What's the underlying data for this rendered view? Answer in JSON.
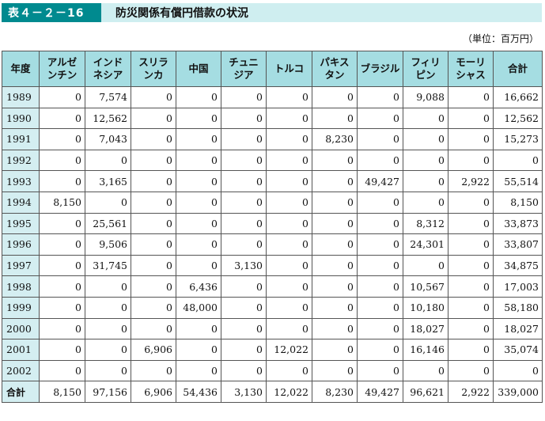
{
  "header": {
    "table_number": "表４－２－16",
    "title": "防災関係有償円借款の状況"
  },
  "unit_note": "（単位：百万円）",
  "columns": [
    [
      "年度"
    ],
    [
      "アルゼ",
      "ンチン"
    ],
    [
      "インド",
      "ネシア"
    ],
    [
      "スリラ",
      "ンカ"
    ],
    [
      "中国"
    ],
    [
      "チュニ",
      "ジア"
    ],
    [
      "トルコ"
    ],
    [
      "パキス",
      "タン"
    ],
    [
      "ブラジル"
    ],
    [
      "フィリ",
      "ピン"
    ],
    [
      "モーリ",
      "シャス"
    ],
    [
      "合計"
    ]
  ],
  "rows": [
    [
      "1989",
      "0",
      "7,574",
      "0",
      "0",
      "0",
      "0",
      "0",
      "0",
      "9,088",
      "0",
      "16,662"
    ],
    [
      "1990",
      "0",
      "12,562",
      "0",
      "0",
      "0",
      "0",
      "0",
      "0",
      "0",
      "0",
      "12,562"
    ],
    [
      "1991",
      "0",
      "7,043",
      "0",
      "0",
      "0",
      "0",
      "8,230",
      "0",
      "0",
      "0",
      "15,273"
    ],
    [
      "1992",
      "0",
      "0",
      "0",
      "0",
      "0",
      "0",
      "0",
      "0",
      "0",
      "0",
      "0"
    ],
    [
      "1993",
      "0",
      "3,165",
      "0",
      "0",
      "0",
      "0",
      "0",
      "49,427",
      "0",
      "2,922",
      "55,514"
    ],
    [
      "1994",
      "8,150",
      "0",
      "0",
      "0",
      "0",
      "0",
      "0",
      "0",
      "0",
      "0",
      "8,150"
    ],
    [
      "1995",
      "0",
      "25,561",
      "0",
      "0",
      "0",
      "0",
      "0",
      "0",
      "8,312",
      "0",
      "33,873"
    ],
    [
      "1996",
      "0",
      "9,506",
      "0",
      "0",
      "0",
      "0",
      "0",
      "0",
      "24,301",
      "0",
      "33,807"
    ],
    [
      "1997",
      "0",
      "31,745",
      "0",
      "0",
      "3,130",
      "0",
      "0",
      "0",
      "0",
      "0",
      "34,875"
    ],
    [
      "1998",
      "0",
      "0",
      "0",
      "6,436",
      "0",
      "0",
      "0",
      "0",
      "10,567",
      "0",
      "17,003"
    ],
    [
      "1999",
      "0",
      "0",
      "0",
      "48,000",
      "0",
      "0",
      "0",
      "0",
      "10,180",
      "0",
      "58,180"
    ],
    [
      "2000",
      "0",
      "0",
      "0",
      "0",
      "0",
      "0",
      "0",
      "0",
      "18,027",
      "0",
      "18,027"
    ],
    [
      "2001",
      "0",
      "0",
      "6,906",
      "0",
      "0",
      "12,022",
      "0",
      "0",
      "16,146",
      "0",
      "35,074"
    ],
    [
      "2002",
      "0",
      "0",
      "0",
      "0",
      "0",
      "0",
      "0",
      "0",
      "0",
      "0",
      "0"
    ]
  ],
  "total_row": [
    "合計",
    "8,150",
    "97,156",
    "6,906",
    "54,436",
    "3,130",
    "12,022",
    "8,230",
    "49,427",
    "96,621",
    "2,922",
    "339,000"
  ],
  "colors": {
    "tag_bg": "#008a8f",
    "title_bg": "#cfeef0",
    "header_bg": "#a5dde2",
    "year_bg": "#d4eef1"
  }
}
